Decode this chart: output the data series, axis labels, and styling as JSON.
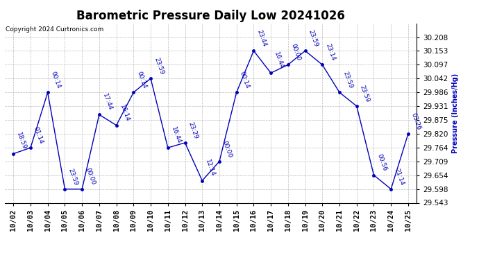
{
  "title": "Barometric Pressure Daily Low 20241026",
  "copyright": "Copyright 2024 Curtronics.com",
  "ylabel": "Pressure (Inches/Hg)",
  "dates": [
    "10/02",
    "10/03",
    "10/04",
    "10/05",
    "10/06",
    "10/07",
    "10/08",
    "10/09",
    "10/10",
    "10/11",
    "10/12",
    "10/13",
    "10/14",
    "10/15",
    "10/16",
    "10/17",
    "10/18",
    "10/19",
    "10/20",
    "10/21",
    "10/22",
    "10/23",
    "10/24",
    "10/25"
  ],
  "values": [
    29.74,
    29.764,
    29.986,
    29.598,
    29.598,
    29.897,
    29.854,
    29.986,
    30.042,
    29.764,
    29.784,
    29.632,
    29.709,
    29.986,
    30.153,
    30.064,
    30.097,
    30.153,
    30.097,
    29.986,
    29.931,
    29.654,
    29.598,
    29.82
  ],
  "time_labels": [
    "18:59",
    "01:14",
    "00:14",
    "23:59",
    "00:00",
    "17:44",
    "16:14",
    "00:14",
    "23:59",
    "16:44",
    "23:29",
    "12:14",
    "00:00",
    "00:14",
    "23:44",
    "16:44",
    "00:00",
    "23:59",
    "23:14",
    "23:59",
    "23:59",
    "00:56",
    "21:14",
    "03:26"
  ],
  "line_color": "#0000bb",
  "marker_color": "#0000bb",
  "background_color": "#ffffff",
  "grid_color": "#bbbbbb",
  "ylim_min": 29.543,
  "ylim_max": 30.263,
  "yticks": [
    29.543,
    29.598,
    29.654,
    29.709,
    29.764,
    29.82,
    29.875,
    29.931,
    29.986,
    30.042,
    30.097,
    30.153,
    30.208
  ],
  "title_fontsize": 12,
  "annotation_fontsize": 6.5,
  "tick_fontsize": 7.5,
  "copyright_fontsize": 6.5
}
